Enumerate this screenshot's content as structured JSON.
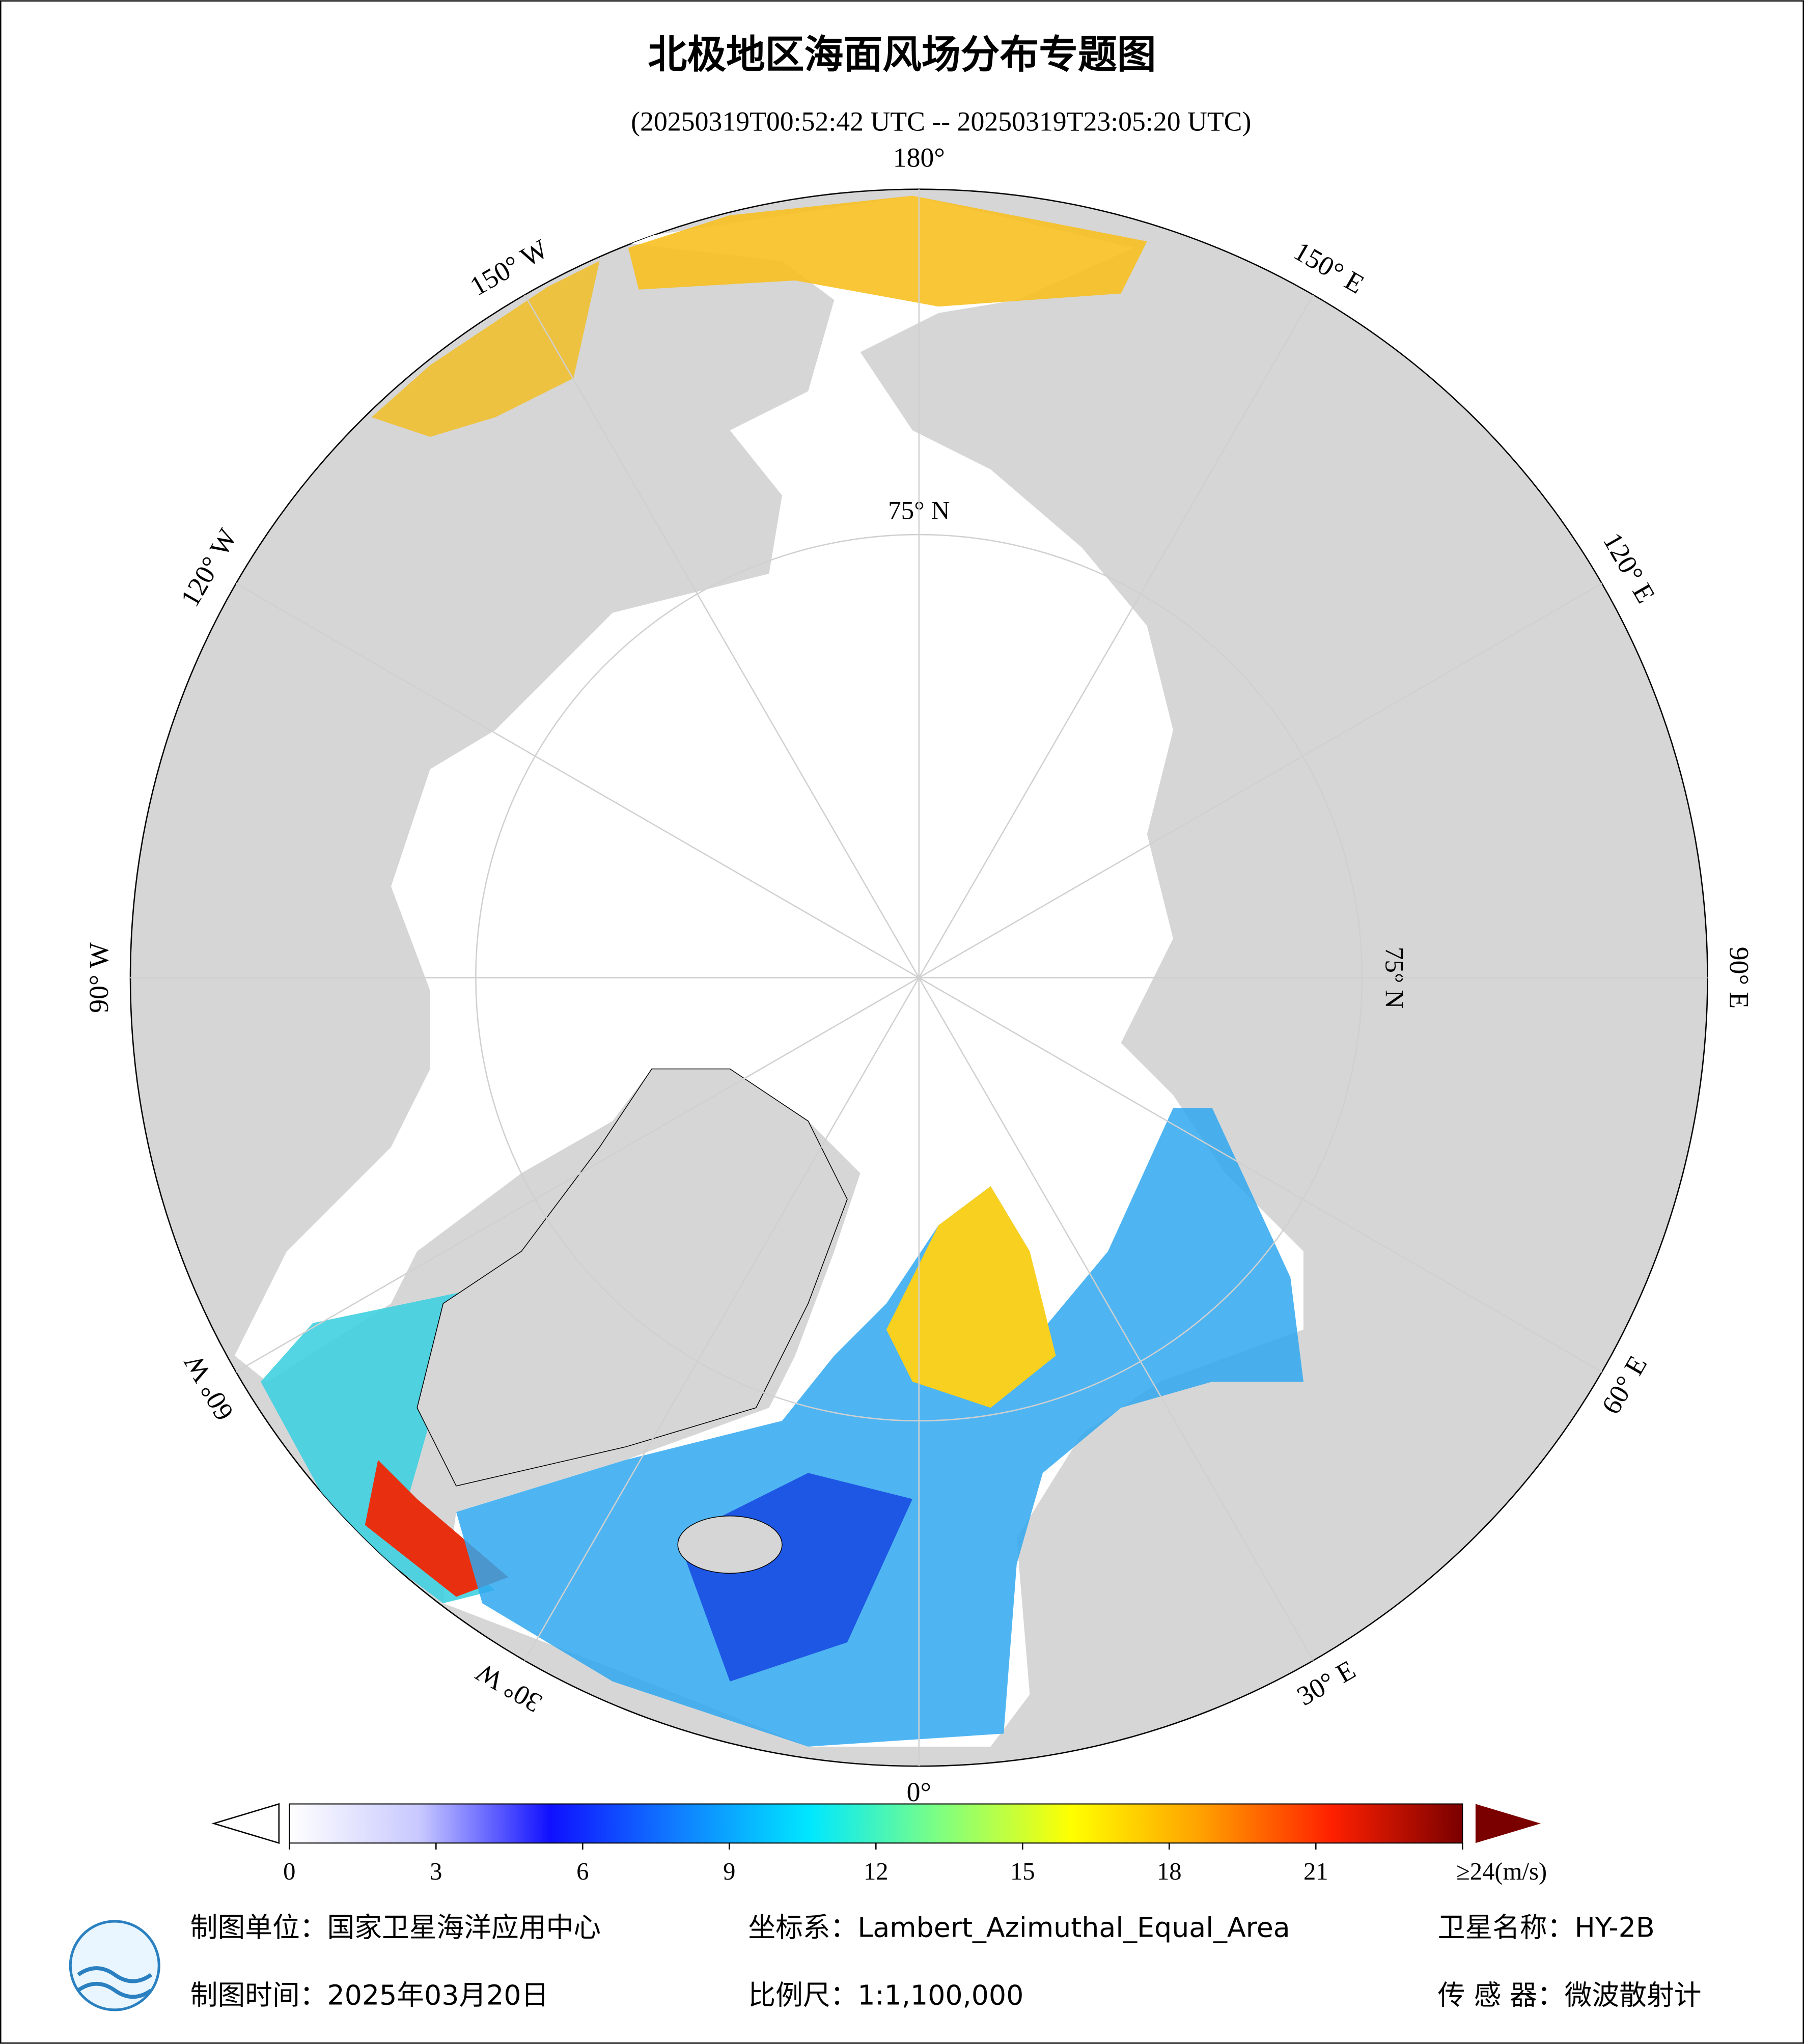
{
  "title": "北极地区海面风场分布专题图",
  "subtitle": "(20250319T00:52:42 UTC -- 20250319T23:05:20 UTC)",
  "map": {
    "meridians": [
      {
        "value": 180,
        "label": "180°"
      },
      {
        "value": 150,
        "label": "150° E"
      },
      {
        "value": 120,
        "label": "120° E"
      },
      {
        "value": 90,
        "label": "90° E"
      },
      {
        "value": 60,
        "label": "60° E"
      },
      {
        "value": 30,
        "label": "30° E"
      },
      {
        "value": 0,
        "label": "0°"
      },
      {
        "value": -30,
        "label": "30° W"
      },
      {
        "value": -60,
        "label": "60° W"
      },
      {
        "value": -90,
        "label": "90° W"
      },
      {
        "value": -120,
        "label": "120° W"
      },
      {
        "value": -150,
        "label": "150° W"
      }
    ],
    "parallel": {
      "value": 75,
      "label": "75° N"
    }
  },
  "colorbar": {
    "range": [
      0,
      24
    ],
    "ticks": [
      0,
      3,
      6,
      9,
      12,
      15,
      18,
      21,
      {
        "value": 24,
        "label": "≥24(m/s)"
      }
    ],
    "colors": [
      "#ffffff",
      "#c8c8ff",
      "#1010ff",
      "#1080ff",
      "#00e8ff",
      "#80ff80",
      "#ffff00",
      "#ffa000",
      "#ff2000",
      "#7a0000"
    ]
  },
  "footer": {
    "producer": "制图单位：国家卫星海洋应用中心",
    "coordinate_system": "坐标系：Lambert_Azimuthal_Equal_Area",
    "satellite": "卫星名称：HY-2B",
    "date": "制图时间：2025年03月20日",
    "scale": "比例尺：1:1,100,000",
    "sensor": "传 感 器：微波散射计"
  }
}
